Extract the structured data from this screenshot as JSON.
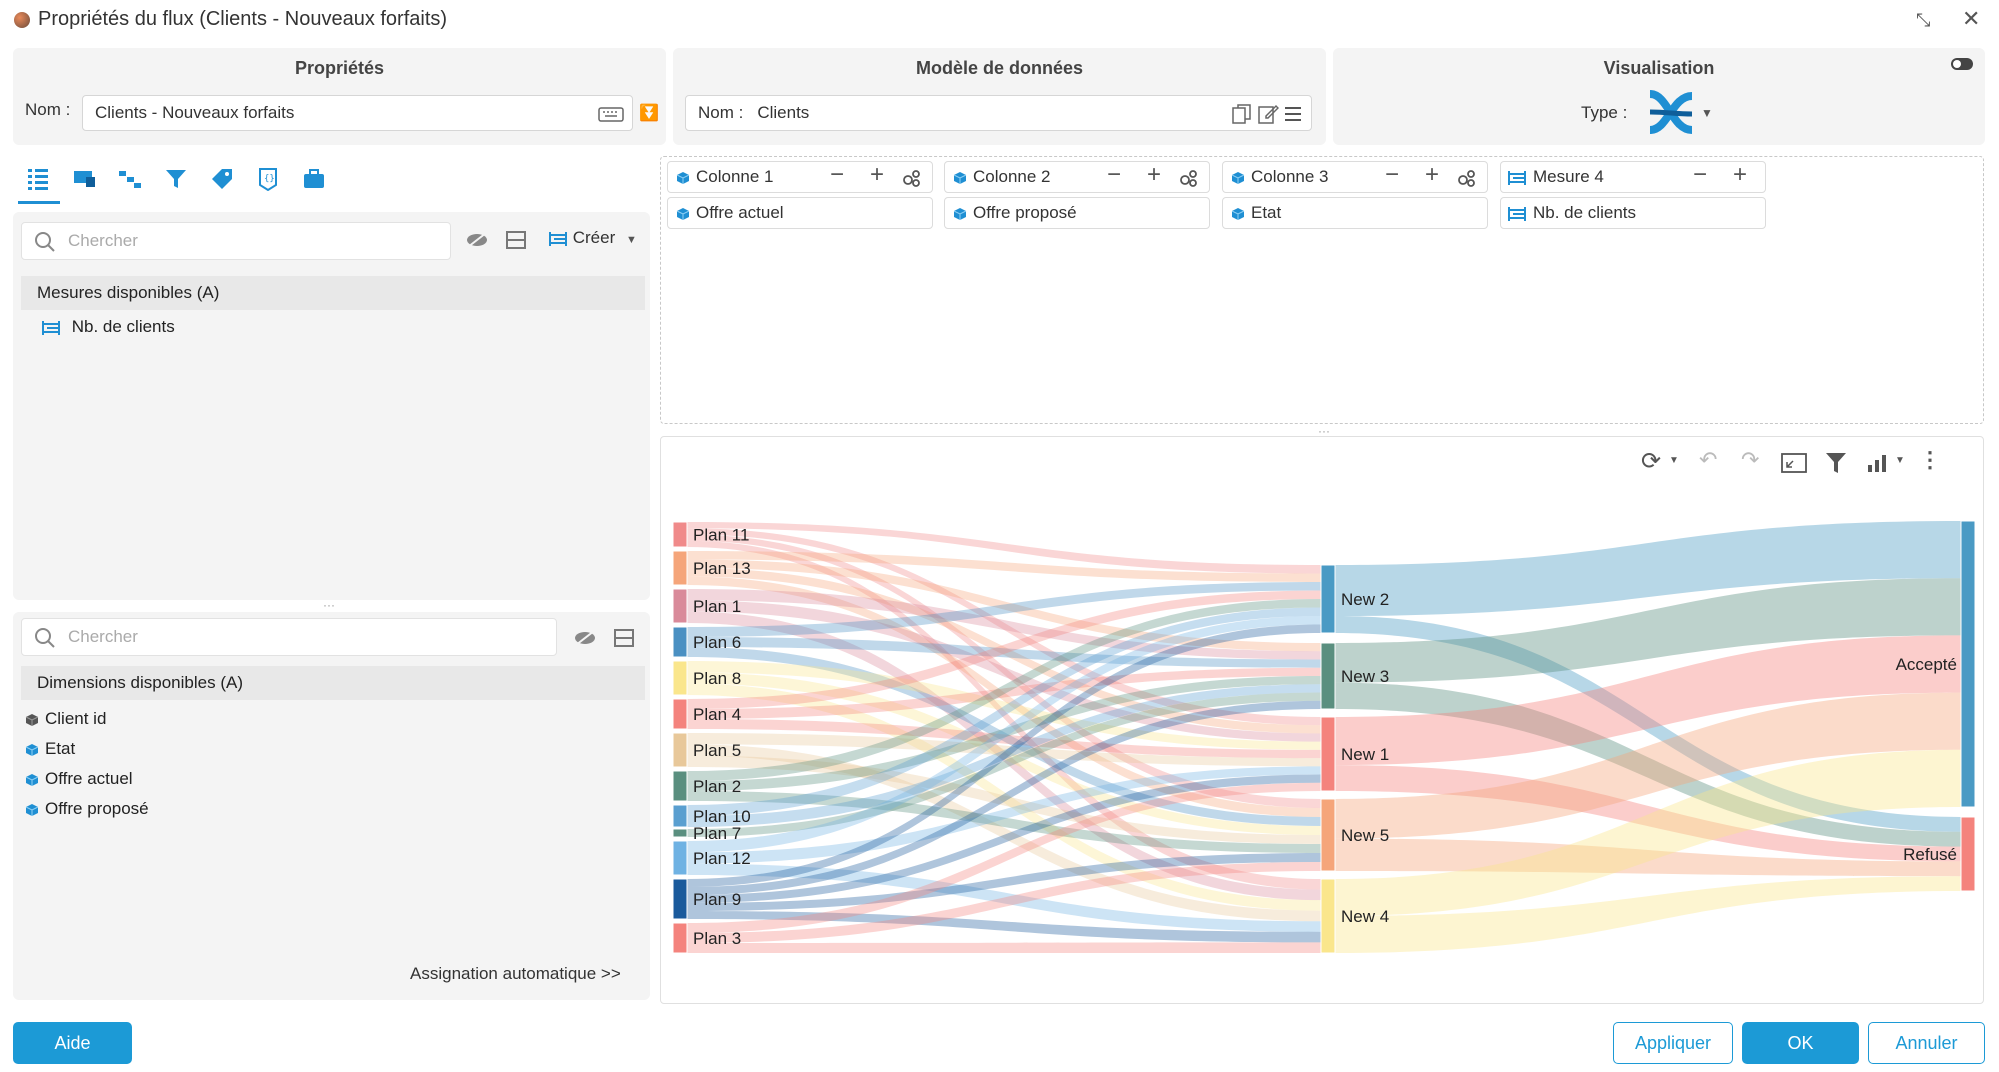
{
  "window": {
    "title": "Propriétés du flux (Clients - Nouveaux forfaits)"
  },
  "proprietes": {
    "header": "Propriétés",
    "name_label": "Nom :",
    "name_value": "Clients - Nouveaux forfaits"
  },
  "modele": {
    "header": "Modèle de données",
    "name_label": "Nom :",
    "name_value": "Clients"
  },
  "visualisation": {
    "header": "Visualisation",
    "type_label": "Type :"
  },
  "measures": {
    "search_placeholder": "Chercher",
    "create_label": "Créer",
    "list_header": "Mesures disponibles (A)",
    "items": [
      "Nb. de clients"
    ]
  },
  "dimensions": {
    "search_placeholder": "Chercher",
    "list_header": "Dimensions disponibles (A)",
    "items": [
      "Client id",
      "Etat",
      "Offre actuel",
      "Offre proposé"
    ],
    "auto_assign": "Assignation automatique >>"
  },
  "mapping": [
    {
      "header": "Colonne 1",
      "value": "Offre actuel"
    },
    {
      "header": "Colonne 2",
      "value": "Offre proposé"
    },
    {
      "header": "Colonne 3",
      "value": "Etat"
    },
    {
      "header": "Mesure 4",
      "value": "Nb. de clients"
    }
  ],
  "chart_data": {
    "type": "sankey",
    "columns": [
      [
        "Plan 11",
        "Plan 13",
        "Plan 1",
        "Plan 6",
        "Plan 8",
        "Plan 4",
        "Plan 5",
        "Plan 2",
        "Plan 10",
        "Plan 7",
        "Plan 12",
        "Plan 9",
        "Plan 3"
      ],
      [
        "New 2",
        "New 3",
        "New 1",
        "New 5",
        "New 4"
      ],
      [
        "Accepté",
        "Refusé"
      ]
    ],
    "colors": {
      "Plan 11": "#f08a8a",
      "Plan 13": "#f5a57a",
      "Plan 1": "#d98a9a",
      "Plan 6": "#4a90c2",
      "Plan 8": "#fae68c",
      "Plan 4": "#f4837d",
      "Plan 5": "#e8c89a",
      "Plan 2": "#5a8f7f",
      "Plan 10": "#5a9fd0",
      "Plan 7": "#5a8f7f",
      "Plan 12": "#6fb2e3",
      "Plan 9": "#1a5a9c",
      "Plan 3": "#f4837d",
      "New 2": "#4a9ac4",
      "New 3": "#5a8f7f",
      "New 1": "#f4837d",
      "New 5": "#f5a57a",
      "New 4": "#fae68c",
      "Accepté": "#4a9ac4",
      "Refusé": "#f4837d"
    }
  },
  "buttons": {
    "help": "Aide",
    "apply": "Appliquer",
    "ok": "OK",
    "cancel": "Annuler"
  }
}
